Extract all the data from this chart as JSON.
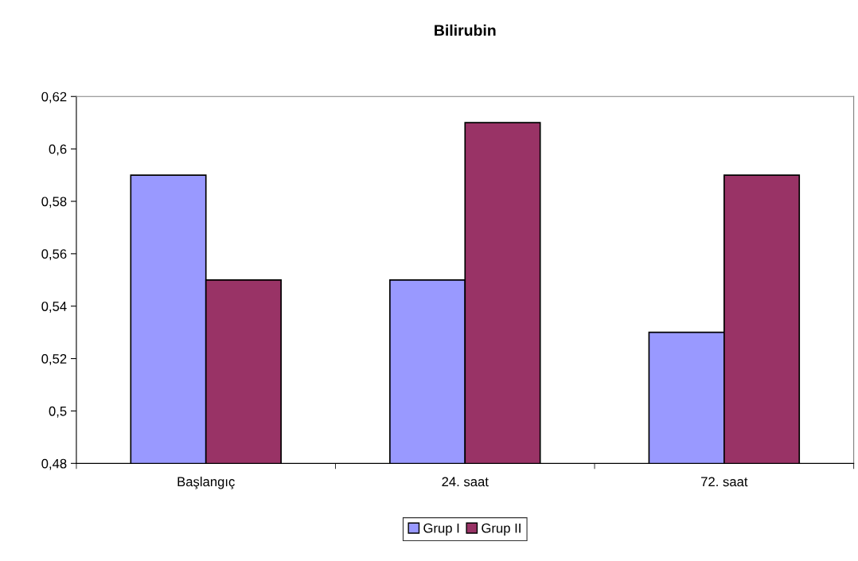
{
  "chart_data": {
    "type": "bar",
    "title": "Bilirubin",
    "categories": [
      "Başlangıç",
      "24. saat",
      "72. saat"
    ],
    "series": [
      {
        "name": "Grup I",
        "color": "#9999ff",
        "values": [
          0.59,
          0.55,
          0.53
        ]
      },
      {
        "name": "Grup II",
        "color": "#993366",
        "values": [
          0.55,
          0.61,
          0.59
        ]
      }
    ],
    "ylim": [
      0.48,
      0.62
    ],
    "yticks": [
      {
        "value": 0.48,
        "label": "0,48"
      },
      {
        "value": 0.5,
        "label": "0,5"
      },
      {
        "value": 0.52,
        "label": "0,52"
      },
      {
        "value": 0.54,
        "label": "0,54"
      },
      {
        "value": 0.56,
        "label": "0,56"
      },
      {
        "value": 0.58,
        "label": "0,58"
      },
      {
        "value": 0.6,
        "label": "0,6"
      },
      {
        "value": 0.62,
        "label": "0,62"
      }
    ],
    "grid": false,
    "legend": "bottom"
  }
}
